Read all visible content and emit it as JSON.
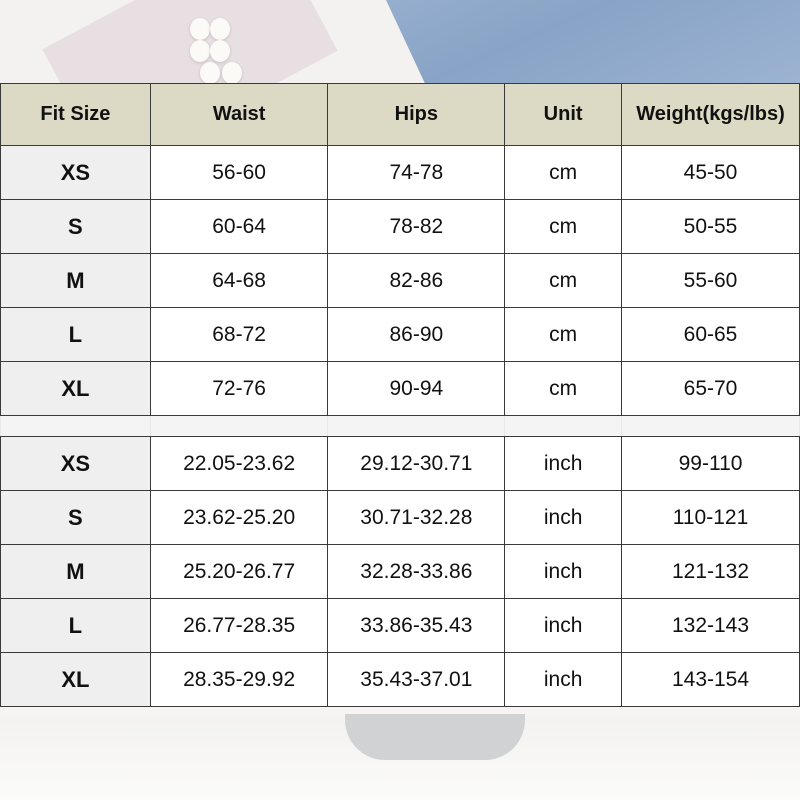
{
  "table": {
    "headers": [
      "Fit Size",
      "Waist",
      "Hips",
      "Unit",
      "Weight(kgs/lbs)"
    ],
    "cm_rows": [
      [
        "XS",
        "56-60",
        "74-78",
        "cm",
        "45-50"
      ],
      [
        "S",
        "60-64",
        "78-82",
        "cm",
        "50-55"
      ],
      [
        "M",
        "64-68",
        "82-86",
        "cm",
        "55-60"
      ],
      [
        "L",
        "68-72",
        "86-90",
        "cm",
        "60-65"
      ],
      [
        "XL",
        "72-76",
        "90-94",
        "cm",
        "65-70"
      ]
    ],
    "inch_rows": [
      [
        "XS",
        "22.05-23.62",
        "29.12-30.71",
        "inch",
        "99-110"
      ],
      [
        "S",
        "23.62-25.20",
        "30.71-32.28",
        "inch",
        "110-121"
      ],
      [
        "M",
        "25.20-26.77",
        "32.28-33.86",
        "inch",
        "121-132"
      ],
      [
        "L",
        "26.77-28.35",
        "33.86-35.43",
        "inch",
        "132-143"
      ],
      [
        "XL",
        "28.35-29.92",
        "35.43-37.01",
        "inch",
        "143-154"
      ]
    ]
  },
  "colors": {
    "header_bg": "#dcd9c4",
    "size_col_bg": "#efefef",
    "border": "#3a3a3a"
  }
}
